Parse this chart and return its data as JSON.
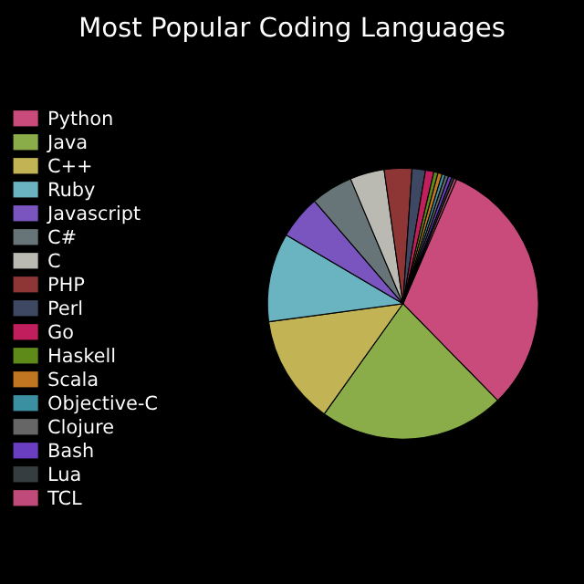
{
  "chart_data": {
    "type": "pie",
    "title": "Most Popular Coding Languages",
    "categories": [
      "Python",
      "Java",
      "C++",
      "Ruby",
      "Javascript",
      "C#",
      "C",
      "PHP",
      "Perl",
      "Go",
      "Haskell",
      "Scala",
      "Objective-C",
      "Clojure",
      "Bash",
      "Lua",
      "TCL"
    ],
    "values": [
      31.2,
      22.2,
      13,
      10.6,
      5.2,
      5,
      4.1,
      3.3,
      1.6,
      1,
      0.5,
      0.5,
      0.4,
      0.4,
      0.4,
      0.3,
      0.3
    ],
    "colors": [
      "#c84b7c",
      "#8aad4a",
      "#c2b354",
      "#6ab3c0",
      "#7a55c0",
      "#687578",
      "#babab2",
      "#8e3636",
      "#3f4862",
      "#c01e5c",
      "#5e8a1a",
      "#c07620",
      "#3a8fa0",
      "#666666",
      "#6a3ec0",
      "#353d40",
      "#c04a7a"
    ],
    "legend": "left"
  }
}
